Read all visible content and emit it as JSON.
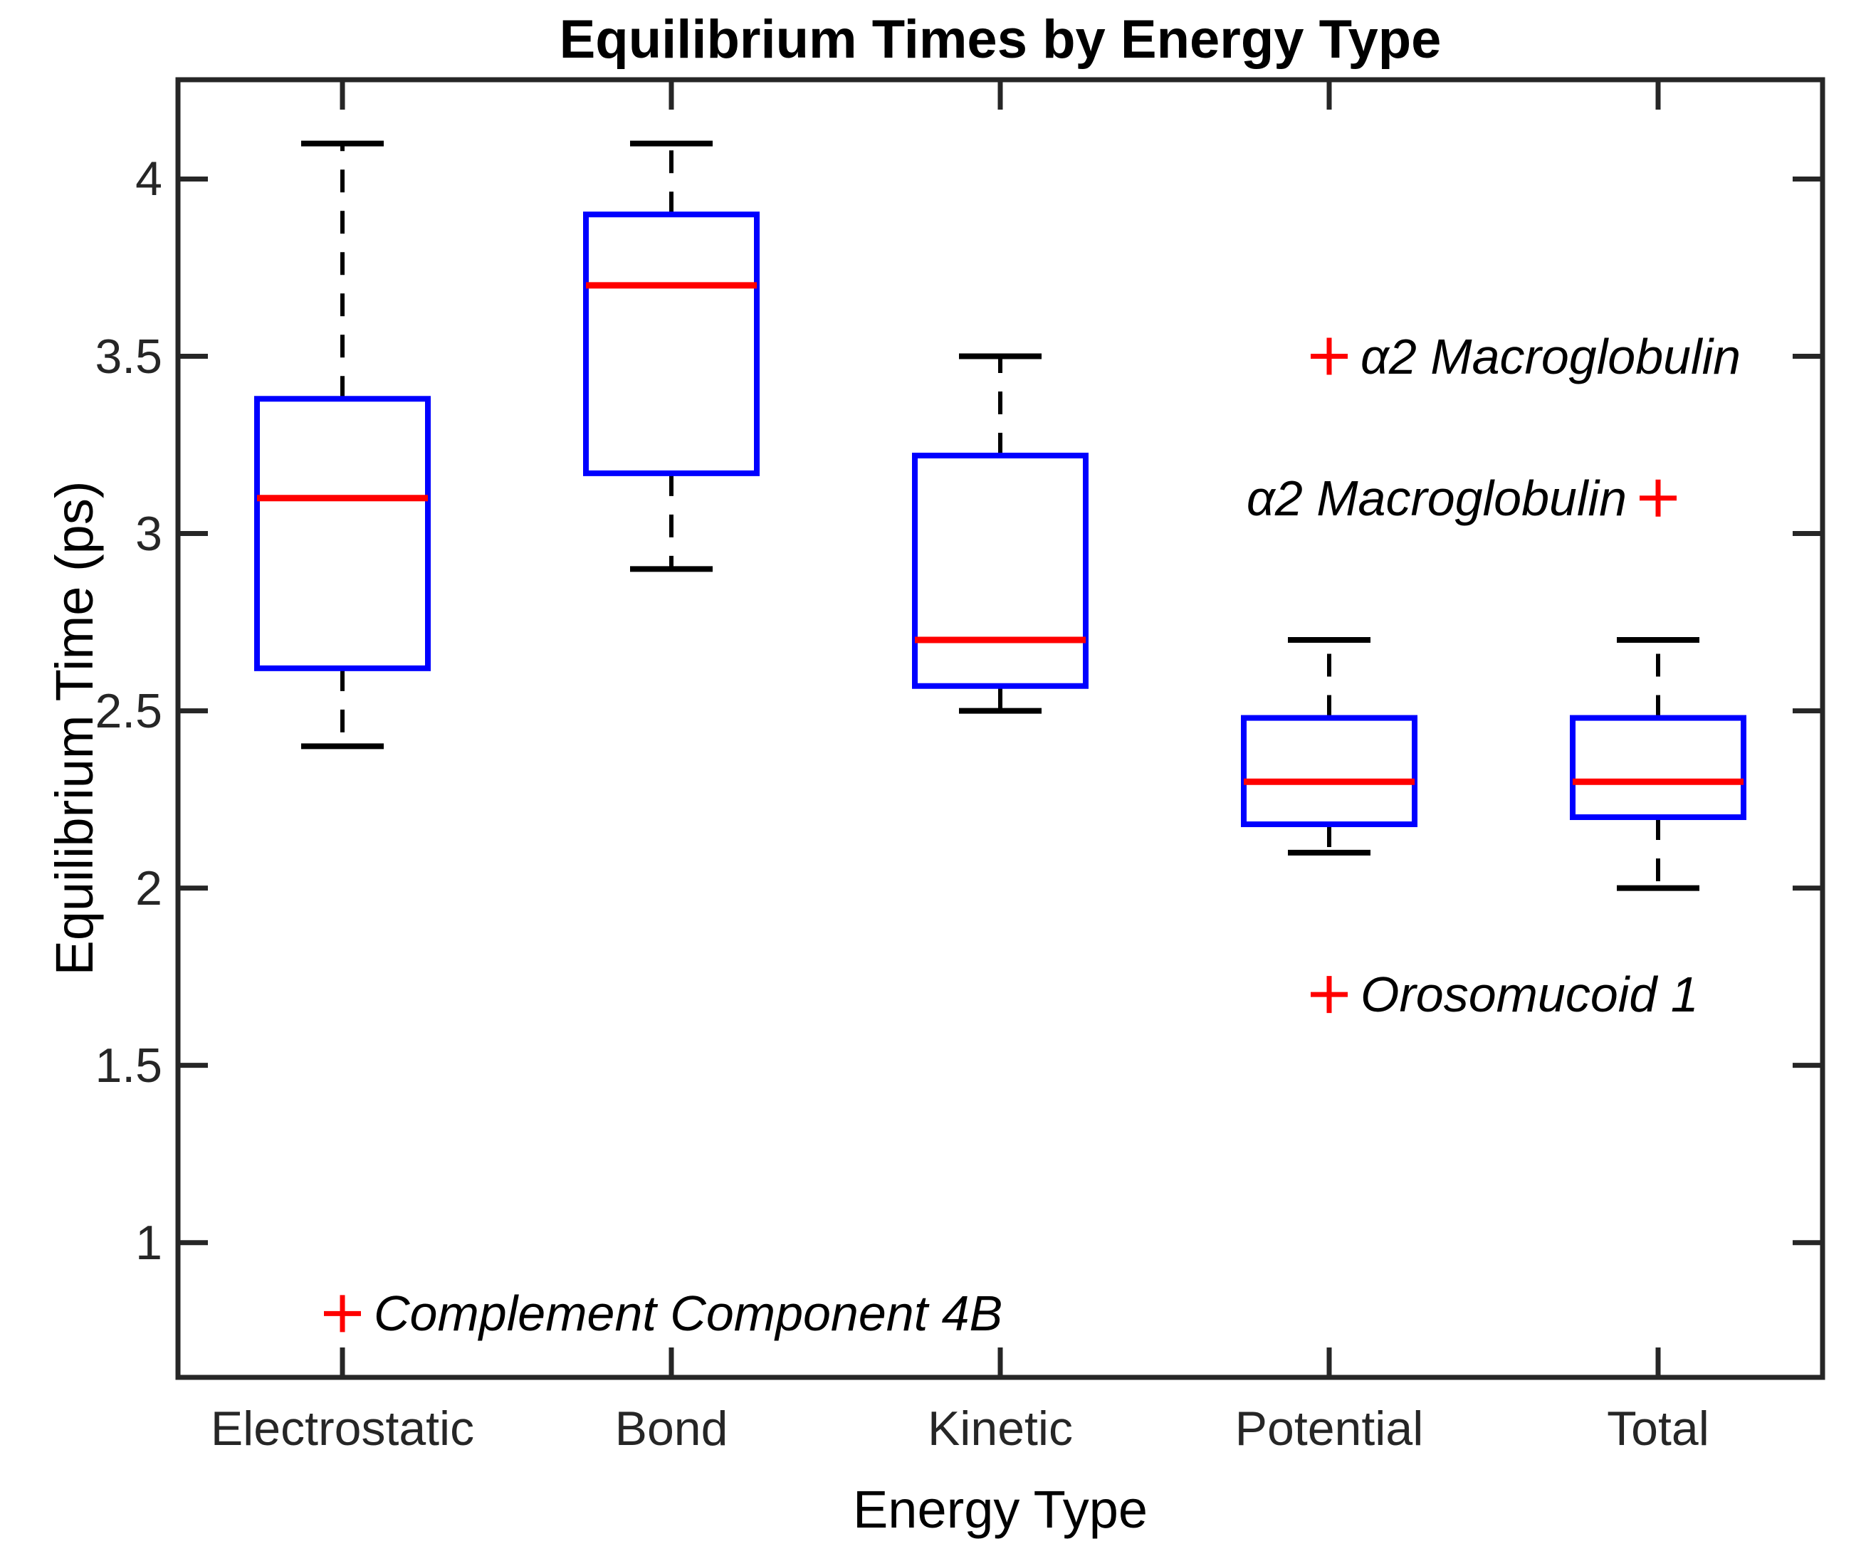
{
  "figure": {
    "title": "Equilibrium Times by Energy Type",
    "xlabel": "Energy Type",
    "ylabel": "Equilibrium Time (ps)"
  },
  "chart_data": {
    "type": "box",
    "title": "Equilibrium Times by Energy Type",
    "xlabel": "Energy Type",
    "ylabel": "Equilibrium Time (ps)",
    "categories": [
      "Electrostatic",
      "Bond",
      "Kinetic",
      "Potential",
      "Total"
    ],
    "series": [
      {
        "name": "Electrostatic",
        "whisker_low": 2.4,
        "q1": 2.62,
        "median": 3.1,
        "q3": 3.38,
        "whisker_high": 4.1
      },
      {
        "name": "Bond",
        "whisker_low": 2.9,
        "q1": 3.17,
        "median": 3.7,
        "q3": 3.9,
        "whisker_high": 4.1
      },
      {
        "name": "Kinetic",
        "whisker_low": 2.5,
        "q1": 2.57,
        "median": 2.7,
        "q3": 3.22,
        "whisker_high": 3.5
      },
      {
        "name": "Potential",
        "whisker_low": 2.1,
        "q1": 2.18,
        "median": 2.3,
        "q3": 2.48,
        "whisker_high": 2.7
      },
      {
        "name": "Total",
        "whisker_low": 2.0,
        "q1": 2.2,
        "median": 2.3,
        "q3": 2.48,
        "whisker_high": 2.7
      }
    ],
    "outliers": [
      {
        "category": "Electrostatic",
        "value": 0.8,
        "label": "Complement Component 4B",
        "label_side": "right",
        "marker": "+"
      },
      {
        "category": "Potential",
        "value": 3.5,
        "label": "α2 Macroglobulin",
        "label_side": "right",
        "marker": "+"
      },
      {
        "category": "Potential",
        "value": 1.7,
        "label": "Orosomucoid 1",
        "label_side": "right",
        "marker": "+"
      },
      {
        "category": "Total",
        "value": 3.1,
        "label": "α2 Macroglobulin",
        "label_side": "left",
        "marker": "+"
      }
    ],
    "yticks": [
      1,
      1.5,
      2,
      2.5,
      3,
      3.5,
      4
    ],
    "ytick_labels": [
      "1",
      "1.5",
      "2",
      "2.5",
      "3",
      "3.5",
      "4"
    ],
    "ylim": [
      0.62,
      4.28
    ],
    "grid": false,
    "legend": null,
    "colors": {
      "box": "#0000ff",
      "median": "#ff0000",
      "whisker": "#000000",
      "outlier": "#ff0000",
      "axis": "#262626",
      "label_text": "#000000",
      "background": "#ffffff"
    }
  }
}
